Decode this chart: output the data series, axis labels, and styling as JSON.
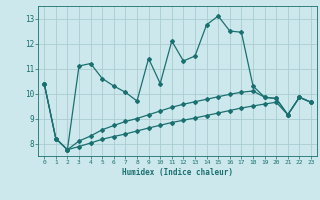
{
  "xlabel": "Humidex (Indice chaleur)",
  "bg_color": "#cde8ec",
  "grid_color": "#aacdd2",
  "line_color": "#1a7070",
  "xlim": [
    -0.5,
    23.5
  ],
  "ylim": [
    7.5,
    13.5
  ],
  "yticks": [
    8,
    9,
    10,
    11,
    12,
    13
  ],
  "xticks": [
    0,
    1,
    2,
    3,
    4,
    5,
    6,
    7,
    8,
    9,
    10,
    11,
    12,
    13,
    14,
    15,
    16,
    17,
    18,
    19,
    20,
    21,
    22,
    23
  ],
  "s1_x": [
    0,
    1,
    2,
    3,
    4,
    5,
    6,
    7,
    8,
    9,
    10,
    11,
    12,
    13,
    14,
    15,
    16,
    17,
    18,
    19,
    20,
    21,
    22,
    23
  ],
  "s1_y": [
    10.4,
    8.2,
    7.75,
    11.1,
    11.2,
    10.6,
    10.3,
    10.05,
    9.7,
    11.4,
    10.4,
    12.1,
    11.3,
    11.5,
    12.75,
    13.1,
    12.5,
    12.45,
    10.3,
    9.85,
    9.8,
    9.15,
    9.85,
    9.65
  ],
  "s2_x": [
    0,
    1,
    2,
    3,
    4,
    5,
    6,
    7,
    8,
    9,
    10,
    11,
    12,
    13,
    14,
    15,
    16,
    17,
    18,
    19,
    20,
    21,
    22,
    23
  ],
  "s2_y": [
    10.4,
    8.2,
    7.75,
    8.1,
    8.3,
    8.55,
    8.72,
    8.88,
    9.0,
    9.15,
    9.3,
    9.45,
    9.57,
    9.67,
    9.77,
    9.87,
    9.97,
    10.05,
    10.1,
    9.85,
    9.8,
    9.15,
    9.85,
    9.65
  ],
  "s3_x": [
    0,
    1,
    2,
    3,
    4,
    5,
    6,
    7,
    8,
    9,
    10,
    11,
    12,
    13,
    14,
    15,
    16,
    17,
    18,
    19,
    20,
    21,
    22,
    23
  ],
  "s3_y": [
    10.4,
    8.2,
    7.75,
    7.88,
    8.02,
    8.17,
    8.28,
    8.38,
    8.5,
    8.62,
    8.73,
    8.84,
    8.93,
    9.02,
    9.12,
    9.22,
    9.32,
    9.42,
    9.5,
    9.58,
    9.65,
    9.15,
    9.85,
    9.65
  ],
  "markersize": 2.0,
  "linewidth": 0.9
}
